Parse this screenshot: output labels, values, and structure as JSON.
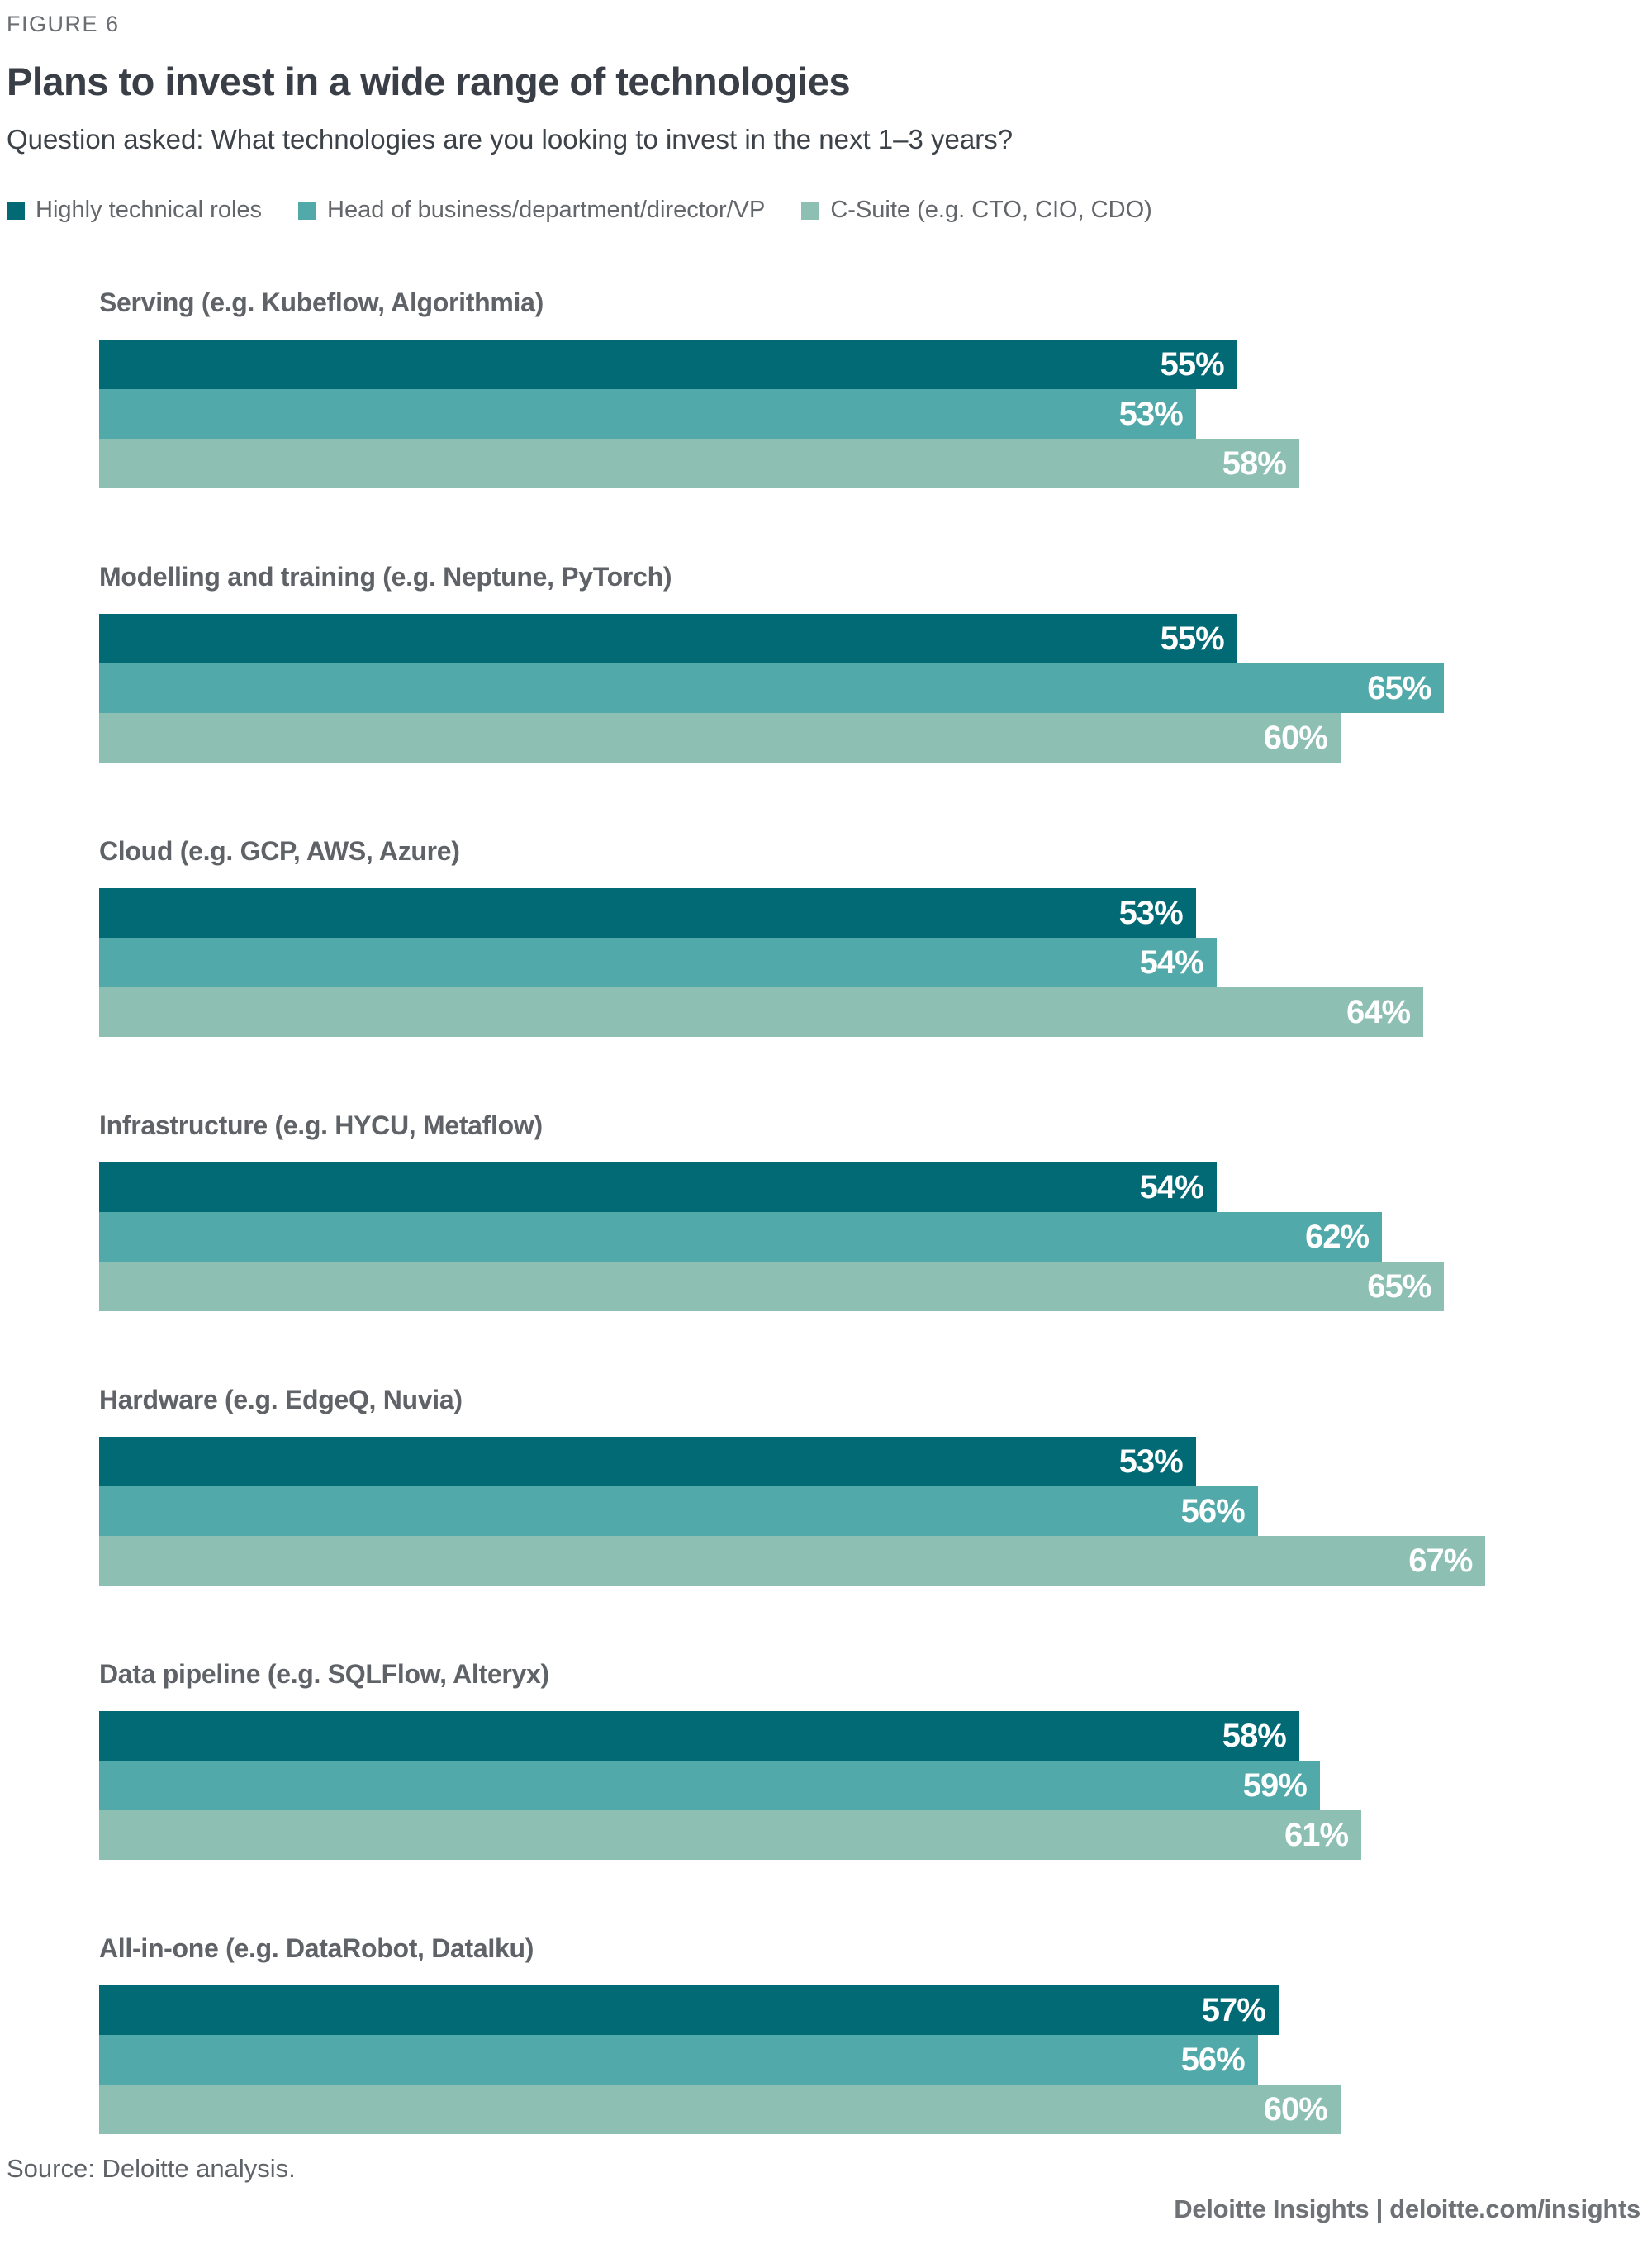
{
  "header": {
    "figure_label": "FIGURE 6",
    "title": "Plans to invest in a wide range of technologies",
    "question": "Question asked: What technologies are you looking to invest in the next 1–3 years?"
  },
  "legend": [
    {
      "label": "Highly technical roles",
      "color": "#016a75"
    },
    {
      "label": "Head of business/department/director/VP",
      "color": "#52a9a9"
    },
    {
      "label": "C-Suite (e.g. CTO, CIO, CDO)",
      "color": "#8dbfb3"
    }
  ],
  "chart_data": {
    "type": "bar",
    "orientation": "horizontal",
    "unit": "%",
    "value_labels": "inside-end",
    "grid": false,
    "xlim": [
      0,
      75
    ],
    "categories": [
      "Serving (e.g. Kubeflow, Algorithmia)",
      "Modelling and training (e.g. Neptune, PyTorch)",
      "Cloud (e.g. GCP, AWS, Azure)",
      "Infrastructure (e.g. HYCU, Metaflow)",
      "Hardware (e.g. EdgeQ, Nuvia)",
      "Data pipeline (e.g. SQLFlow, Alteryx)",
      "All-in-one (e.g. DataRobot, DataIku)"
    ],
    "series": [
      {
        "name": "Highly technical roles",
        "color": "#016a75",
        "values": [
          55,
          55,
          53,
          54,
          53,
          58,
          57
        ]
      },
      {
        "name": "Head of business/department/director/VP",
        "color": "#52a9a9",
        "values": [
          53,
          65,
          54,
          62,
          56,
          59,
          56
        ]
      },
      {
        "name": "C-Suite (e.g. CTO, CIO, CDO)",
        "color": "#8dbfb3",
        "values": [
          58,
          60,
          64,
          65,
          67,
          61,
          60
        ]
      }
    ]
  },
  "footer": {
    "source": "Source: Deloitte analysis.",
    "brand": "Deloitte Insights | deloitte.com/insights"
  },
  "colors": {
    "series1": "#016a75",
    "series2": "#52a9a9",
    "series3": "#8dbfb3",
    "title_text": "#3a3f47",
    "muted_text": "#63666a",
    "bar_value_text": "#ffffff"
  }
}
